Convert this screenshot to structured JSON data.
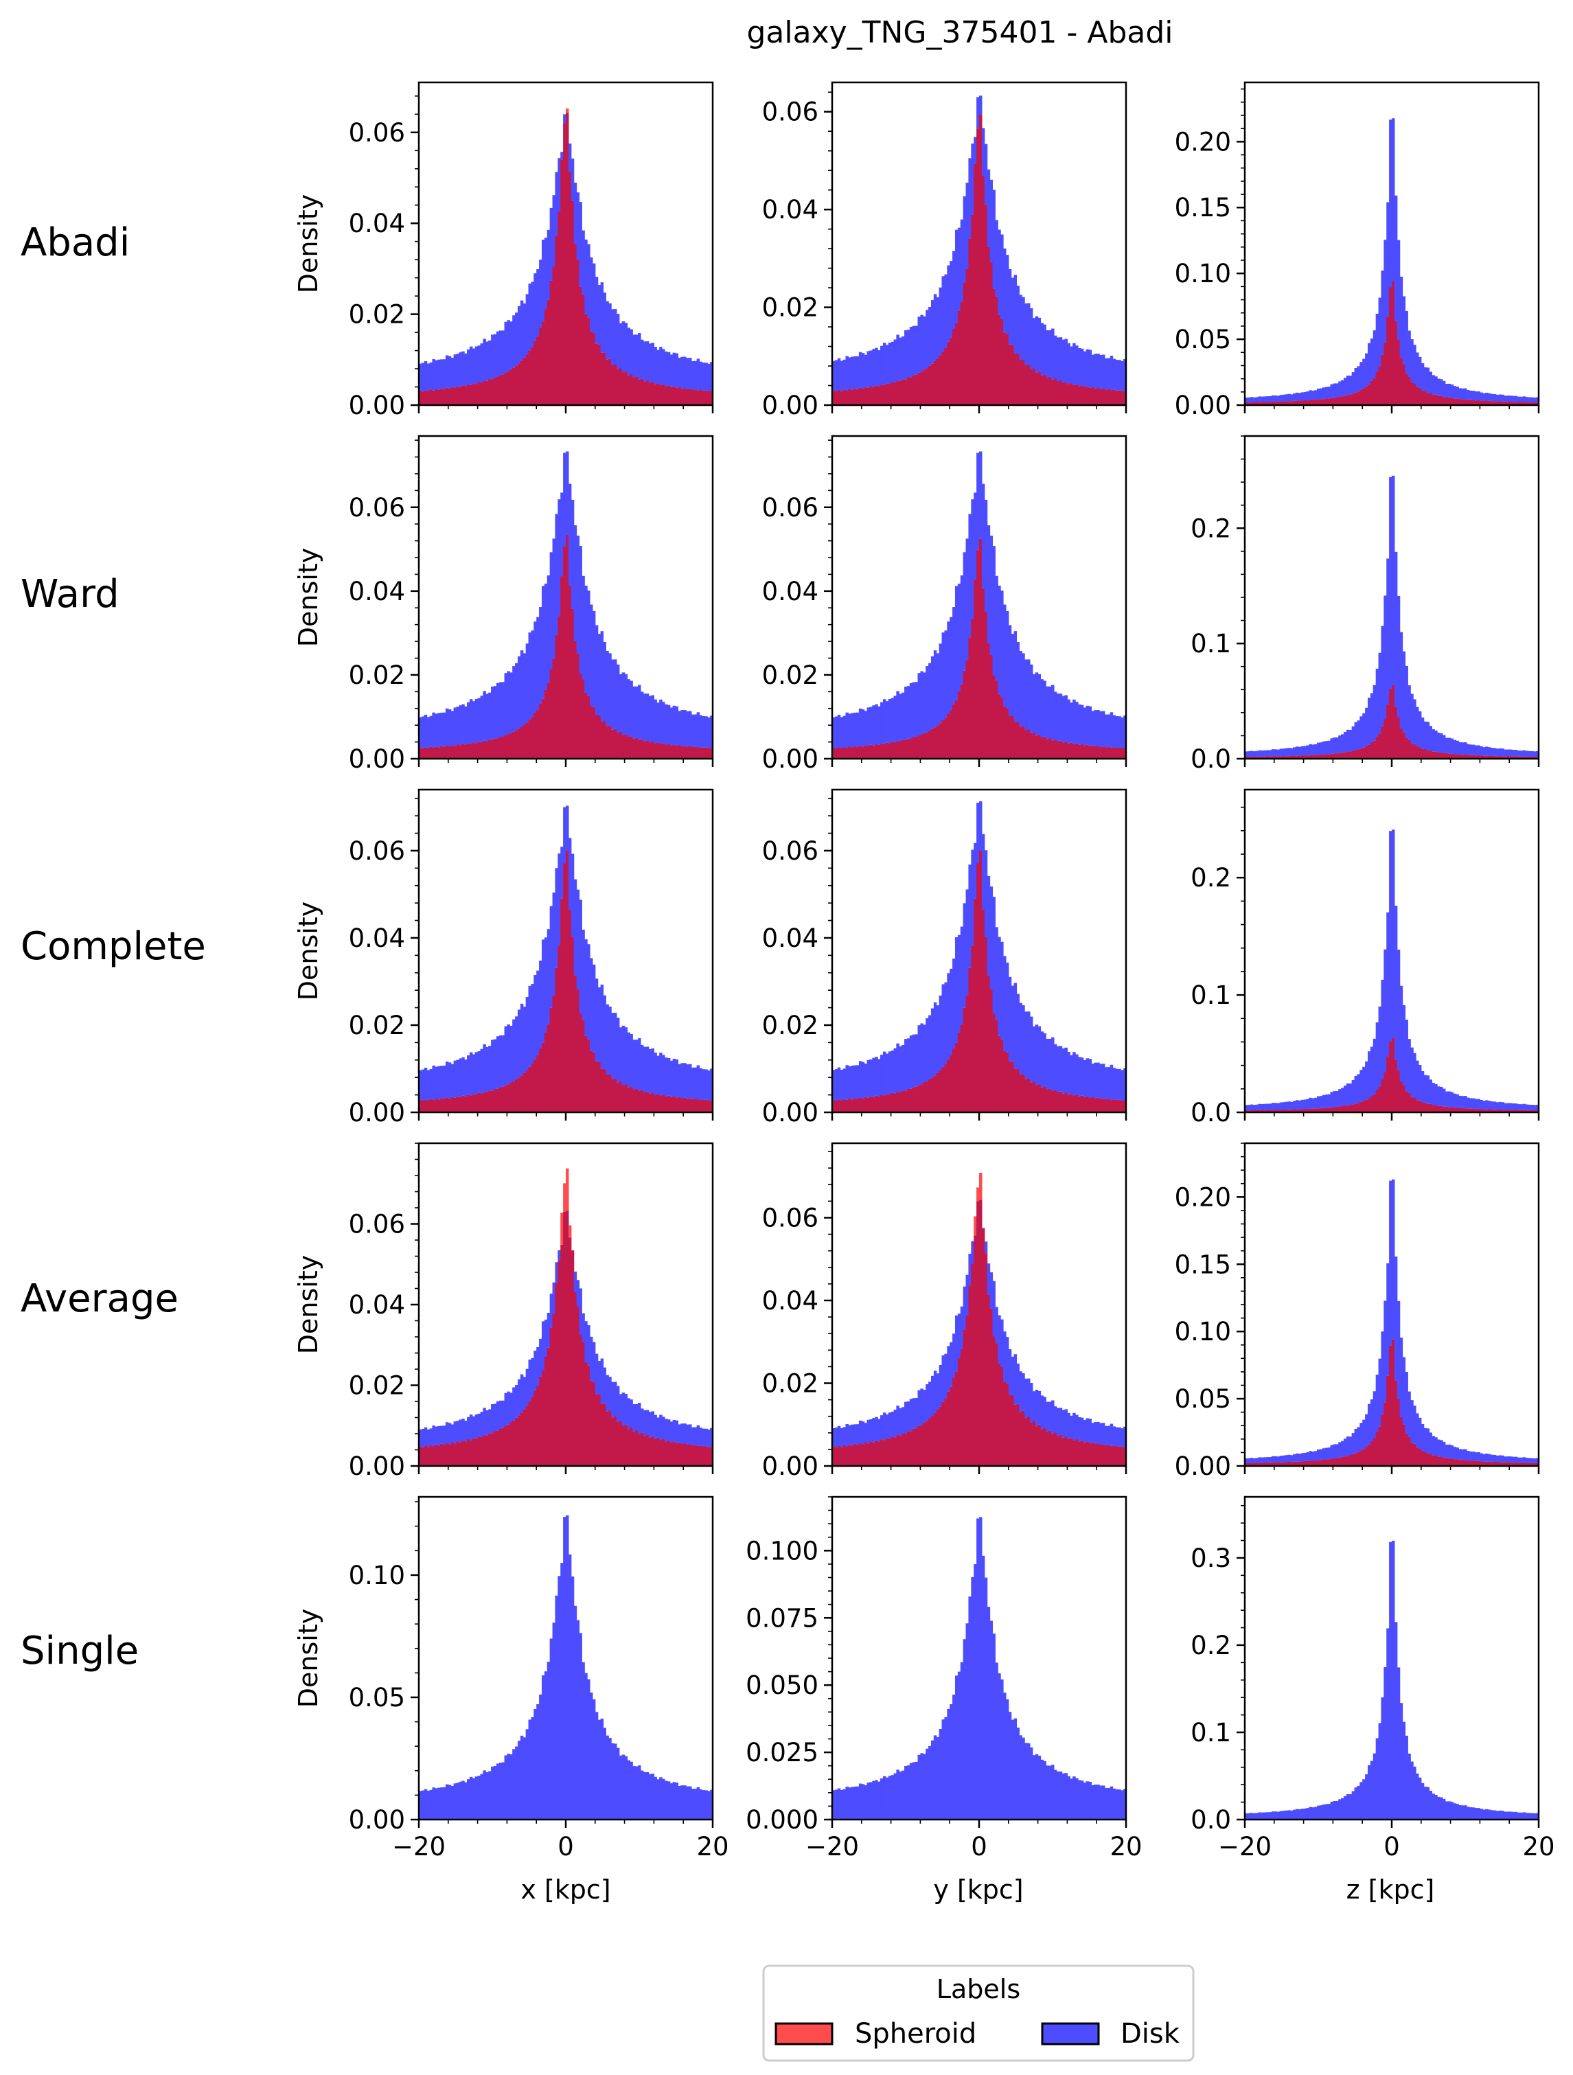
{
  "figure": {
    "title": "galaxy_TNG_375401 - Abadi",
    "row_labels": [
      "Abadi",
      "Ward",
      "Complete",
      "Average",
      "Single"
    ],
    "column_xlabels": [
      "x [kpc]",
      "y [kpc]",
      "z [kpc]"
    ],
    "ylabel": "Density"
  },
  "legend": {
    "title": "Labels",
    "entries": [
      {
        "label": "Spheroid",
        "color": "#ff4d4d"
      },
      {
        "label": "Disk",
        "color": "#4d4dff"
      }
    ]
  },
  "colors": {
    "spheroid": "#ff4d4d",
    "disk": "#4d4dff",
    "overlap": "#c2184a"
  },
  "chart_data": [
    {
      "type": "histogram",
      "row": "Abadi",
      "xlabel": "x [kpc]",
      "ylabel": "Density",
      "xlim": [
        -20,
        20
      ],
      "ylim": [
        0,
        0.071
      ],
      "yticks": [
        "0.00",
        "0.02",
        "0.04",
        "0.06"
      ],
      "x_peak": 0,
      "series": [
        {
          "name": "Disk",
          "peak": 0.064,
          "tail": 0.004,
          "width": 3.2
        },
        {
          "name": "Spheroid",
          "peak": 0.068,
          "tail": 0.001,
          "width": 1.4
        }
      ]
    },
    {
      "type": "histogram",
      "row": "Abadi",
      "xlabel": "y [kpc]",
      "ylabel": "Density",
      "xlim": [
        -20,
        20
      ],
      "ylim": [
        0,
        0.066
      ],
      "yticks": [
        "0.00",
        "0.02",
        "0.04",
        "0.06"
      ],
      "x_peak": 0,
      "series": [
        {
          "name": "Disk",
          "peak": 0.063,
          "tail": 0.004,
          "width": 3.2
        },
        {
          "name": "Spheroid",
          "peak": 0.062,
          "tail": 0.001,
          "width": 1.4
        }
      ]
    },
    {
      "type": "histogram",
      "row": "Abadi",
      "xlabel": "z [kpc]",
      "ylabel": "Density",
      "xlim": [
        -20,
        20
      ],
      "ylim": [
        0,
        0.245
      ],
      "yticks": [
        "0.00",
        "0.05",
        "0.10",
        "0.15",
        "0.20"
      ],
      "x_peak": 0,
      "series": [
        {
          "name": "Disk",
          "peak": 0.235,
          "tail": 0.001,
          "width": 1.0
        },
        {
          "name": "Spheroid",
          "peak": 0.105,
          "tail": 0.0005,
          "width": 0.8
        }
      ]
    },
    {
      "type": "histogram",
      "row": "Ward",
      "xlabel": "x [kpc]",
      "ylabel": "Density",
      "xlim": [
        -20,
        20
      ],
      "ylim": [
        0,
        0.077
      ],
      "yticks": [
        "0.00",
        "0.02",
        "0.04",
        "0.06"
      ],
      "x_peak": 0,
      "series": [
        {
          "name": "Disk",
          "peak": 0.073,
          "tail": 0.004,
          "width": 3.2
        },
        {
          "name": "Spheroid",
          "peak": 0.056,
          "tail": 0.001,
          "width": 1.3
        }
      ]
    },
    {
      "type": "histogram",
      "row": "Ward",
      "xlabel": "y [kpc]",
      "ylabel": "Density",
      "xlim": [
        -20,
        20
      ],
      "ylim": [
        0,
        0.077
      ],
      "yticks": [
        "0.00",
        "0.02",
        "0.04",
        "0.06"
      ],
      "x_peak": 0,
      "series": [
        {
          "name": "Disk",
          "peak": 0.073,
          "tail": 0.004,
          "width": 3.2
        },
        {
          "name": "Spheroid",
          "peak": 0.055,
          "tail": 0.001,
          "width": 1.3
        }
      ]
    },
    {
      "type": "histogram",
      "row": "Ward",
      "xlabel": "z [kpc]",
      "ylabel": "Density",
      "xlim": [
        -20,
        20
      ],
      "ylim": [
        0,
        0.28
      ],
      "yticks": [
        "0.0",
        "0.1",
        "0.2"
      ],
      "x_peak": 0,
      "series": [
        {
          "name": "Disk",
          "peak": 0.265,
          "tail": 0.001,
          "width": 1.0
        },
        {
          "name": "Spheroid",
          "peak": 0.07,
          "tail": 0.0005,
          "width": 0.9
        }
      ]
    },
    {
      "type": "histogram",
      "row": "Complete",
      "xlabel": "x [kpc]",
      "ylabel": "Density",
      "xlim": [
        -20,
        20
      ],
      "ylim": [
        0,
        0.074
      ],
      "yticks": [
        "0.00",
        "0.02",
        "0.04",
        "0.06"
      ],
      "x_peak": 0,
      "series": [
        {
          "name": "Disk",
          "peak": 0.07,
          "tail": 0.004,
          "width": 3.2
        },
        {
          "name": "Spheroid",
          "peak": 0.063,
          "tail": 0.001,
          "width": 1.3
        }
      ]
    },
    {
      "type": "histogram",
      "row": "Complete",
      "xlabel": "y [kpc]",
      "ylabel": "Density",
      "xlim": [
        -20,
        20
      ],
      "ylim": [
        0,
        0.074
      ],
      "yticks": [
        "0.00",
        "0.02",
        "0.04",
        "0.06"
      ],
      "x_peak": 0,
      "series": [
        {
          "name": "Disk",
          "peak": 0.071,
          "tail": 0.004,
          "width": 3.2
        },
        {
          "name": "Spheroid",
          "peak": 0.063,
          "tail": 0.001,
          "width": 1.3
        }
      ]
    },
    {
      "type": "histogram",
      "row": "Complete",
      "xlabel": "z [kpc]",
      "ylabel": "Density",
      "xlim": [
        -20,
        20
      ],
      "ylim": [
        0,
        0.275
      ],
      "yticks": [
        "0.0",
        "0.1",
        "0.2"
      ],
      "x_peak": 0,
      "series": [
        {
          "name": "Disk",
          "peak": 0.26,
          "tail": 0.001,
          "width": 1.0
        },
        {
          "name": "Spheroid",
          "peak": 0.07,
          "tail": 0.0005,
          "width": 0.9
        }
      ]
    },
    {
      "type": "histogram",
      "row": "Average",
      "xlabel": "x [kpc]",
      "ylabel": "Density",
      "xlim": [
        -20,
        20
      ],
      "ylim": [
        0,
        0.08
      ],
      "yticks": [
        "0.00",
        "0.02",
        "0.04",
        "0.06"
      ],
      "x_peak": 0,
      "series": [
        {
          "name": "Disk",
          "peak": 0.063,
          "tail": 0.004,
          "width": 3.2
        },
        {
          "name": "Spheroid",
          "peak": 0.076,
          "tail": 0.002,
          "width": 1.6
        }
      ]
    },
    {
      "type": "histogram",
      "row": "Average",
      "xlabel": "y [kpc]",
      "ylabel": "Density",
      "xlim": [
        -20,
        20
      ],
      "ylim": [
        0,
        0.078
      ],
      "yticks": [
        "0.00",
        "0.02",
        "0.04",
        "0.06"
      ],
      "x_peak": 0,
      "series": [
        {
          "name": "Disk",
          "peak": 0.064,
          "tail": 0.004,
          "width": 3.2
        },
        {
          "name": "Spheroid",
          "peak": 0.073,
          "tail": 0.002,
          "width": 1.6
        }
      ]
    },
    {
      "type": "histogram",
      "row": "Average",
      "xlabel": "z [kpc]",
      "ylabel": "Density",
      "xlim": [
        -20,
        20
      ],
      "ylim": [
        0,
        0.24
      ],
      "yticks": [
        "0.00",
        "0.05",
        "0.10",
        "0.15",
        "0.20"
      ],
      "x_peak": 0,
      "series": [
        {
          "name": "Disk",
          "peak": 0.23,
          "tail": 0.001,
          "width": 1.0
        },
        {
          "name": "Spheroid",
          "peak": 0.105,
          "tail": 0.0005,
          "width": 0.8
        }
      ]
    },
    {
      "type": "histogram",
      "row": "Single",
      "xlabel": "x [kpc]",
      "ylabel": "Density",
      "xlim": [
        -20,
        20
      ],
      "ylim": [
        0,
        0.132
      ],
      "yticks": [
        "0.00",
        "0.05",
        "0.10"
      ],
      "xticks": [
        "−20",
        "0",
        "20"
      ],
      "x_peak": 0,
      "series": [
        {
          "name": "Disk",
          "peak": 0.125,
          "tail": 0.004,
          "width": 2.5
        }
      ]
    },
    {
      "type": "histogram",
      "row": "Single",
      "xlabel": "y [kpc]",
      "ylabel": "Density",
      "xlim": [
        -20,
        20
      ],
      "ylim": [
        0,
        0.12
      ],
      "yticks": [
        "0.000",
        "0.025",
        "0.050",
        "0.075",
        "0.100"
      ],
      "xticks": [
        "−20",
        "0",
        "20"
      ],
      "x_peak": 0,
      "series": [
        {
          "name": "Disk",
          "peak": 0.113,
          "tail": 0.004,
          "width": 2.5
        }
      ]
    },
    {
      "type": "histogram",
      "row": "Single",
      "xlabel": "z [kpc]",
      "ylabel": "Density",
      "xlim": [
        -20,
        20
      ],
      "ylim": [
        0,
        0.37
      ],
      "yticks": [
        "0.0",
        "0.1",
        "0.2",
        "0.3"
      ],
      "xticks": [
        "−20",
        "0",
        "20"
      ],
      "x_peak": 0,
      "series": [
        {
          "name": "Disk",
          "peak": 0.35,
          "tail": 0.001,
          "width": 0.9
        }
      ]
    }
  ]
}
